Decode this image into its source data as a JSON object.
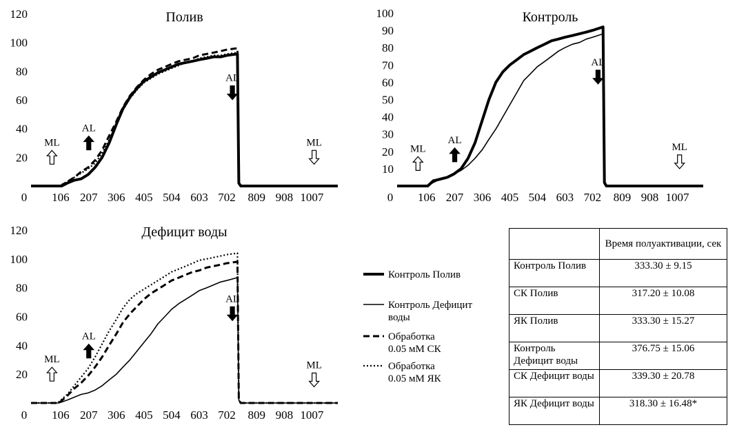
{
  "chart_data": [
    {
      "type": "line",
      "title": "Полив",
      "x_ticks": [
        "0",
        "106",
        "207",
        "306",
        "405",
        "504",
        "603",
        "702",
        "809",
        "908",
        "1007"
      ],
      "y_ticks": [
        "20",
        "40",
        "60",
        "80",
        "100",
        "120"
      ],
      "xlim": [
        0,
        1100
      ],
      "ylim": [
        0,
        120
      ],
      "markers": [
        {
          "label": "ML",
          "x": 75,
          "y": 20,
          "dir": "up",
          "filled": false
        },
        {
          "label": "AL",
          "x": 207,
          "y": 30,
          "dir": "up",
          "filled": true
        },
        {
          "label": "AL",
          "x": 722,
          "y": 65,
          "dir": "down",
          "filled": true
        },
        {
          "label": "ML",
          "x": 1015,
          "y": 20,
          "dir": "down",
          "filled": false
        }
      ],
      "series": [
        {
          "name": "Контроль Полив",
          "x": [
            0,
            110,
            130,
            155,
            180,
            205,
            230,
            255,
            280,
            306,
            330,
            355,
            380,
            405,
            430,
            455,
            480,
            504,
            530,
            555,
            580,
            603,
            630,
            655,
            680,
            702,
            740,
            745,
            752,
            1100
          ],
          "y": [
            0,
            0,
            2,
            4,
            5,
            8,
            13,
            20,
            30,
            43,
            54,
            62,
            68,
            73,
            76,
            79,
            81,
            83,
            85,
            86,
            87,
            88,
            89,
            90,
            90,
            91,
            92,
            2,
            0,
            0
          ]
        },
        {
          "name": "Обработка 0.05 мМ СК",
          "x": [
            0,
            105,
            130,
            155,
            180,
            205,
            230,
            255,
            280,
            306,
            330,
            355,
            380,
            405,
            430,
            455,
            480,
            504,
            530,
            555,
            580,
            603,
            630,
            655,
            680,
            702,
            740,
            745,
            752,
            1100
          ],
          "y": [
            0,
            0,
            3,
            6,
            10,
            13,
            18,
            25,
            35,
            45,
            55,
            63,
            69,
            74,
            78,
            81,
            83,
            85,
            87,
            88,
            89,
            91,
            92,
            93,
            94,
            95,
            96,
            2,
            0,
            0
          ]
        },
        {
          "name": "Обработка 0.05 мМ ЯК",
          "x": [
            0,
            100,
            130,
            155,
            180,
            205,
            230,
            255,
            280,
            306,
            330,
            355,
            380,
            405,
            430,
            455,
            480,
            504,
            530,
            555,
            580,
            603,
            630,
            655,
            680,
            702,
            740,
            745,
            752,
            1100
          ],
          "y": [
            0,
            0,
            3,
            6,
            9,
            12,
            16,
            23,
            32,
            43,
            53,
            61,
            67,
            72,
            75,
            78,
            80,
            82,
            84,
            86,
            87,
            89,
            90,
            91,
            91,
            92,
            93,
            2,
            0,
            0
          ]
        }
      ]
    },
    {
      "type": "line",
      "title": "Контроль",
      "x_ticks": [
        "0",
        "106",
        "207",
        "306",
        "405",
        "504",
        "603",
        "702",
        "809",
        "908",
        "1007"
      ],
      "y_ticks": [
        "10",
        "20",
        "30",
        "40",
        "50",
        "60",
        "70",
        "80",
        "90",
        "100"
      ],
      "xlim": [
        0,
        1100
      ],
      "ylim": [
        0,
        100
      ],
      "markers": [
        {
          "label": "ML",
          "x": 75,
          "y": 13,
          "dir": "up",
          "filled": false
        },
        {
          "label": "AL",
          "x": 207,
          "y": 18,
          "dir": "up",
          "filled": true
        },
        {
          "label": "AL",
          "x": 722,
          "y": 63,
          "dir": "down",
          "filled": true
        },
        {
          "label": "ML",
          "x": 1015,
          "y": 14,
          "dir": "down",
          "filled": false
        }
      ],
      "series": [
        {
          "name": "Контроль Полив",
          "x": [
            0,
            110,
            130,
            155,
            180,
            205,
            230,
            255,
            280,
            306,
            330,
            355,
            380,
            405,
            430,
            455,
            480,
            504,
            530,
            555,
            580,
            603,
            630,
            655,
            680,
            702,
            740,
            745,
            752,
            1100
          ],
          "y": [
            0,
            0,
            3,
            4,
            5,
            7,
            10,
            16,
            25,
            38,
            50,
            60,
            66,
            70,
            73,
            76,
            78,
            80,
            82,
            84,
            85,
            86,
            87,
            88,
            89,
            90,
            92,
            2,
            0,
            0
          ]
        },
        {
          "name": "Контроль Дефицит воды",
          "x": [
            0,
            110,
            130,
            155,
            180,
            205,
            230,
            255,
            280,
            306,
            330,
            355,
            380,
            405,
            430,
            455,
            480,
            504,
            530,
            555,
            580,
            603,
            630,
            655,
            680,
            702,
            740,
            745,
            752,
            1100
          ],
          "y": [
            0,
            0,
            2,
            4,
            5,
            7,
            9,
            12,
            16,
            21,
            27,
            33,
            40,
            47,
            54,
            61,
            65,
            69,
            72,
            75,
            78,
            80,
            82,
            83,
            85,
            86,
            88,
            2,
            0,
            0
          ]
        }
      ]
    },
    {
      "type": "line",
      "title": "Дефицит воды",
      "x_ticks": [
        "0",
        "106",
        "207",
        "306",
        "405",
        "504",
        "603",
        "702",
        "809",
        "908",
        "1007"
      ],
      "y_ticks": [
        "20",
        "40",
        "60",
        "80",
        "100",
        "120"
      ],
      "xlim": [
        0,
        1100
      ],
      "ylim": [
        0,
        120
      ],
      "markers": [
        {
          "label": "ML",
          "x": 75,
          "y": 20,
          "dir": "up",
          "filled": false
        },
        {
          "label": "AL",
          "x": 207,
          "y": 36,
          "dir": "up",
          "filled": true
        },
        {
          "label": "AL",
          "x": 722,
          "y": 62,
          "dir": "down",
          "filled": true
        },
        {
          "label": "ML",
          "x": 1015,
          "y": 16,
          "dir": "down",
          "filled": false
        }
      ],
      "series": [
        {
          "name": "Контроль Дефицит воды",
          "x": [
            0,
            100,
            130,
            155,
            180,
            205,
            230,
            255,
            280,
            306,
            330,
            355,
            380,
            405,
            430,
            455,
            480,
            504,
            530,
            555,
            580,
            603,
            630,
            655,
            680,
            702,
            740,
            745,
            752,
            1100
          ],
          "y": [
            0,
            0,
            2,
            4,
            6,
            7,
            9,
            12,
            16,
            20,
            25,
            30,
            36,
            42,
            48,
            55,
            60,
            65,
            69,
            72,
            75,
            78,
            80,
            82,
            84,
            85,
            87,
            2,
            0,
            0
          ]
        },
        {
          "name": "Обработка 0.05 мМ СК",
          "x": [
            0,
            100,
            130,
            155,
            180,
            205,
            230,
            255,
            280,
            306,
            330,
            355,
            380,
            405,
            430,
            455,
            480,
            504,
            530,
            555,
            580,
            603,
            630,
            655,
            680,
            702,
            740,
            745,
            752,
            1100
          ],
          "y": [
            0,
            0,
            5,
            10,
            14,
            19,
            25,
            32,
            40,
            48,
            56,
            62,
            67,
            72,
            76,
            79,
            82,
            85,
            87,
            89,
            91,
            92,
            94,
            95,
            96,
            97,
            98,
            2,
            0,
            0
          ]
        },
        {
          "name": "Обработка 0.05 мМ ЯК",
          "x": [
            0,
            95,
            130,
            155,
            180,
            205,
            230,
            255,
            280,
            306,
            330,
            355,
            380,
            405,
            430,
            455,
            480,
            504,
            530,
            555,
            580,
            603,
            630,
            655,
            680,
            702,
            740,
            745,
            752,
            1100
          ],
          "y": [
            0,
            0,
            6,
            12,
            18,
            24,
            32,
            41,
            50,
            58,
            66,
            72,
            76,
            79,
            82,
            85,
            88,
            91,
            93,
            95,
            97,
            99,
            100,
            101,
            102,
            103,
            104,
            2,
            0,
            0
          ]
        }
      ]
    }
  ],
  "legend": [
    {
      "label": "Контроль Полив",
      "style": "thick"
    },
    {
      "label": "Контроль Дефицит воды",
      "style": "thin"
    },
    {
      "label": "Обработка 0.05 мМ СК",
      "style": "dashed"
    },
    {
      "label": "Обработка 0.05 мМ ЯК",
      "style": "dotted"
    }
  ],
  "table": {
    "header": "Время полуактивации, сек",
    "rows": [
      {
        "name": "Контроль Полив",
        "value": "333.30 ± 9.15"
      },
      {
        "name": "СК Полив",
        "value": "317.20 ± 10.08"
      },
      {
        "name": "ЯК Полив",
        "value": "333.30 ± 15.27"
      },
      {
        "name": "Контроль Дефицит воды",
        "value": "376.75 ± 15.06"
      },
      {
        "name": "СК Дефицит воды",
        "value": "339.30 ± 20.78"
      },
      {
        "name": "ЯК Дефицит воды",
        "value": "318.30 ± 16.48*"
      }
    ]
  },
  "styles": {
    "Контроль Полив": {
      "width": 4,
      "dash": ""
    },
    "Контроль Дефицит воды": {
      "width": 1.6,
      "dash": ""
    },
    "Обработка 0.05 мМ СК": {
      "width": 3,
      "dash": "9,5"
    },
    "Обработка 0.05 мМ ЯК": {
      "width": 2.2,
      "dash": "2,3"
    }
  }
}
